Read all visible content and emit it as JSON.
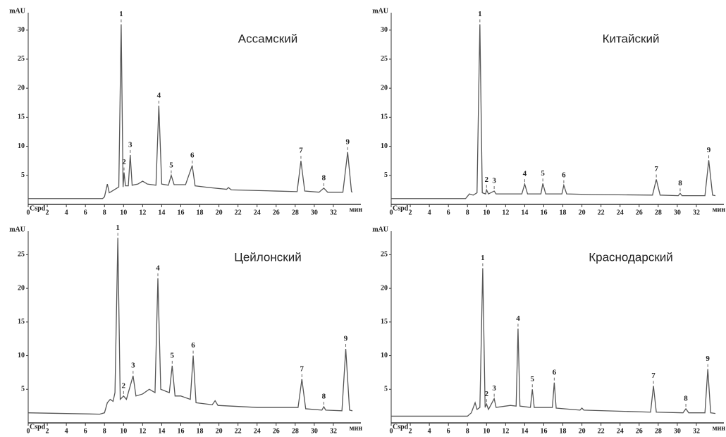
{
  "chart_data": [
    {
      "type": "line",
      "title": "Ассамский",
      "ylabel": "mAU",
      "xlabel": "мин",
      "corner_label": "Cspd",
      "color": "#555555",
      "xlim": [
        0,
        34
      ],
      "ylim": [
        0,
        33
      ],
      "xticks": [
        0,
        2,
        4,
        6,
        8,
        10,
        12,
        14,
        16,
        18,
        20,
        22,
        24,
        26,
        28,
        30,
        32
      ],
      "yticks": [
        5,
        10,
        15,
        20,
        25,
        30
      ],
      "x": [
        0,
        7.8,
        8.0,
        8.3,
        8.5,
        9.0,
        9.5,
        9.75,
        9.95,
        10.05,
        10.2,
        10.5,
        10.7,
        10.9,
        11.5,
        12,
        12.5,
        13.4,
        13.7,
        14.0,
        14.7,
        15.0,
        15.3,
        16.5,
        17.2,
        17.5,
        19,
        20.8,
        21,
        21.3,
        26,
        28.2,
        28.6,
        29.0,
        30.5,
        31.0,
        31.4,
        33.0,
        33.5,
        33.9,
        34
      ],
      "values": [
        1,
        1,
        1.3,
        3.5,
        2,
        2.5,
        3,
        31,
        3,
        5.5,
        3.2,
        3.2,
        8.5,
        3.3,
        3.5,
        4,
        3.5,
        3.3,
        17,
        3.5,
        3.3,
        5,
        3.4,
        3.4,
        6.7,
        3.2,
        2.9,
        2.6,
        2.9,
        2.5,
        2.3,
        2.2,
        7.5,
        2.3,
        2.1,
        2.8,
        2.1,
        2.1,
        9,
        2.2,
        2.1
      ],
      "peaks": {
        "labels": [
          "1",
          "2",
          "3",
          "4",
          "5",
          "6",
          "7",
          "8",
          "9"
        ],
        "x": [
          9.75,
          10.05,
          10.7,
          13.7,
          15.0,
          17.2,
          28.6,
          31.0,
          33.5
        ]
      }
    },
    {
      "type": "line",
      "title": "Китайский",
      "ylabel": "mAU",
      "xlabel": "мин",
      "corner_label": "Cspd",
      "color": "#555555",
      "xlim": [
        0,
        34
      ],
      "ylim": [
        0,
        33
      ],
      "xticks": [
        0,
        2,
        4,
        6,
        8,
        10,
        12,
        14,
        16,
        18,
        20,
        22,
        24,
        26,
        28,
        30,
        32
      ],
      "yticks": [
        5,
        10,
        15,
        20,
        25,
        30
      ],
      "x": [
        0,
        7.8,
        8.2,
        8.6,
        9.0,
        9.3,
        9.55,
        9.9,
        10.0,
        10.2,
        10.8,
        11,
        13.7,
        14.0,
        14.3,
        15.7,
        15.9,
        16.2,
        17.9,
        18.1,
        18.4,
        21,
        27.4,
        27.8,
        28.2,
        30.1,
        30.3,
        30.5,
        32.9,
        33.3,
        33.7,
        34
      ],
      "values": [
        1,
        1,
        1.8,
        1.6,
        2,
        31,
        2,
        1.8,
        2.5,
        1.8,
        2.3,
        1.8,
        1.8,
        3.5,
        1.8,
        1.8,
        3.6,
        1.8,
        1.8,
        3.3,
        1.8,
        1.7,
        1.6,
        4.3,
        1.6,
        1.5,
        1.9,
        1.5,
        1.5,
        7.6,
        1.6,
        1.5
      ],
      "peaks": {
        "labels": [
          "1",
          "2",
          "3",
          "4",
          "5",
          "6",
          "7",
          "8",
          "9"
        ],
        "x": [
          9.3,
          10.0,
          10.8,
          14.0,
          15.9,
          18.1,
          27.8,
          30.3,
          33.3
        ]
      }
    },
    {
      "type": "line",
      "title": "Цейлонский",
      "ylabel": "mAU",
      "xlabel": "мин",
      "corner_label": "Cspd",
      "color": "#555555",
      "xlim": [
        0,
        34
      ],
      "ylim": [
        0,
        28.5
      ],
      "xticks": [
        0,
        2,
        4,
        6,
        8,
        10,
        12,
        14,
        16,
        18,
        20,
        22,
        24,
        26,
        28,
        30,
        32
      ],
      "yticks": [
        5,
        10,
        15,
        20,
        25
      ],
      "x": [
        0,
        7.5,
        8,
        8.3,
        8.6,
        8.9,
        9.1,
        9.4,
        9.65,
        10.0,
        10.3,
        11.0,
        11.3,
        12,
        12.7,
        13.3,
        13.6,
        13.9,
        14.8,
        15.1,
        15.4,
        16,
        17.0,
        17.3,
        17.6,
        19.3,
        19.6,
        19.9,
        24,
        28.3,
        28.7,
        29.1,
        30.8,
        31,
        31.2,
        32.9,
        33.3,
        33.7,
        34
      ],
      "values": [
        1.5,
        1.3,
        1.5,
        3,
        3.5,
        3.2,
        4.5,
        27.5,
        3.5,
        4,
        3.5,
        7,
        4,
        4.3,
        5,
        4.5,
        21.5,
        5,
        4.5,
        8.5,
        4,
        4,
        3.5,
        10,
        3,
        2.7,
        3.3,
        2.6,
        2.3,
        2.3,
        6.5,
        2.1,
        1.9,
        2.4,
        1.9,
        1.8,
        11,
        1.9,
        1.8
      ],
      "peaks": {
        "labels": [
          "1",
          "2",
          "3",
          "4",
          "5",
          "6",
          "7",
          "8",
          "9"
        ],
        "x": [
          9.4,
          10.0,
          11.0,
          13.6,
          15.1,
          17.3,
          28.7,
          31,
          33.3
        ]
      }
    },
    {
      "type": "line",
      "title": "Краснодарский",
      "ylabel": "mAU",
      "xlabel": "мин",
      "corner_label": "Cspd",
      "color": "#555555",
      "xlim": [
        0,
        34
      ],
      "ylim": [
        0,
        28.5
      ],
      "xticks": [
        0,
        2,
        4,
        6,
        8,
        10,
        12,
        14,
        16,
        18,
        20,
        22,
        24,
        26,
        28,
        30,
        32
      ],
      "yticks": [
        5,
        10,
        15,
        20,
        25
      ],
      "x": [
        0,
        8,
        8.4,
        8.8,
        9.0,
        9.3,
        9.6,
        9.85,
        10.0,
        10.2,
        10.8,
        11,
        12.5,
        13.1,
        13.3,
        13.5,
        14.6,
        14.8,
        15.0,
        16.9,
        17.1,
        17.3,
        19.8,
        20,
        20.2,
        27.2,
        27.5,
        27.8,
        30.6,
        30.9,
        31.2,
        32.9,
        33.2,
        33.5,
        34
      ],
      "values": [
        1,
        1,
        1.5,
        3,
        2,
        2.3,
        23,
        2.3,
        2.8,
        2,
        3.6,
        2.3,
        2.6,
        2.5,
        14,
        2.5,
        2.3,
        5,
        2.3,
        2.3,
        6,
        2.2,
        1.9,
        2.2,
        1.9,
        1.6,
        5.5,
        1.6,
        1.5,
        2.1,
        1.5,
        1.5,
        8,
        1.5,
        1.4
      ],
      "peaks": {
        "labels": [
          "1",
          "2",
          "3",
          "4",
          "5",
          "6",
          "7",
          "8",
          "9"
        ],
        "x": [
          9.6,
          10.0,
          10.8,
          13.3,
          14.8,
          17.1,
          27.5,
          30.9,
          33.2
        ]
      }
    }
  ]
}
